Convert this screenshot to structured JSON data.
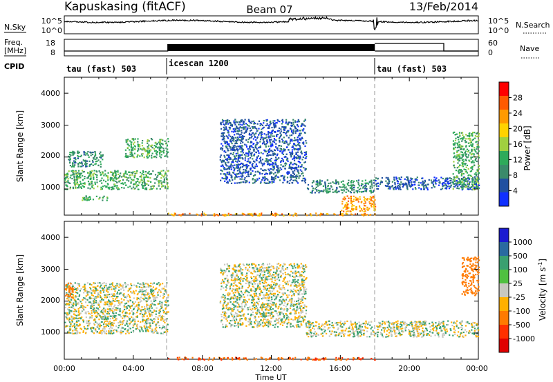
{
  "header": {
    "station": "Kapuskasing (fitACF)",
    "beam": "Beam 07",
    "date": "13/Feb/2014"
  },
  "noise_panel": {
    "left_label": "N.Sky",
    "right_label": "N.Search",
    "ticks": [
      "10^5",
      "10^0"
    ]
  },
  "freq_panel": {
    "left_label_1": "Freq.",
    "left_label_2": "[MHz]",
    "right_label": "Nave",
    "left_ticks": [
      "18",
      "8"
    ],
    "right_ticks": [
      "60",
      "0"
    ]
  },
  "cpid": {
    "label": "CPID",
    "segments": [
      {
        "start_h": 0,
        "end_h": 6,
        "label": "tau (fast) 503"
      },
      {
        "start_h": 6,
        "end_h": 18,
        "label": "icescan 1200"
      },
      {
        "start_h": 18,
        "end_h": 24,
        "label": "tau (fast) 503"
      }
    ]
  },
  "axes": {
    "ylabel": "Slant Range [km]",
    "xlabel": "Time UT",
    "y_ticks": [
      "1000",
      "2000",
      "3000",
      "4000"
    ],
    "x_ticks": [
      "00:00",
      "04:00",
      "08:00",
      "12:00",
      "16:00",
      "20:00",
      "00:00"
    ]
  },
  "power_scale": {
    "label": "Power [dB]",
    "ticks": [
      "4",
      "8",
      "12",
      "16",
      "20",
      "24",
      "28"
    ],
    "colors": [
      "#1030ff",
      "#2050a0",
      "#3a8a6a",
      "#2eaa5a",
      "#a0d040",
      "#ffd200",
      "#ff9a00",
      "#ff5a00",
      "#ff0000"
    ]
  },
  "velocity_scale": {
    "label": "Velocity [m s",
    "label_sup": "-1",
    "label_close": "]",
    "ticks": [
      "1000",
      "500",
      "100",
      "25",
      "-25",
      "-100",
      "-500",
      "-1000"
    ],
    "colors": [
      "#1a1ad0",
      "#2a6aa0",
      "#3aa070",
      "#50c040",
      "#c8c8c0",
      "#ffb000",
      "#ff7a00",
      "#ff3000",
      "#e00000"
    ]
  },
  "chart_data": {
    "type": "heatmap",
    "title": "Kapuskasing (fitACF) Beam 07",
    "xlabel": "Time UT",
    "ylabel": "Slant Range [km]",
    "xlim": [
      0,
      24
    ],
    "ylim": [
      180,
      4500
    ],
    "power_regions": [
      {
        "t0": 0,
        "t1": 6,
        "r0": 1000,
        "r1": 1600,
        "level": 12
      },
      {
        "t0": 0.2,
        "t1": 2.2,
        "r0": 1700,
        "r1": 2200,
        "level": 8
      },
      {
        "t0": 3.5,
        "t1": 6,
        "r0": 2000,
        "r1": 2600,
        "level": 12
      },
      {
        "t0": 1,
        "t1": 2.5,
        "r0": 650,
        "r1": 800,
        "level": 12
      },
      {
        "t0": 9,
        "t1": 14,
        "r0": 1200,
        "r1": 3200,
        "level": 4
      },
      {
        "t0": 14,
        "t1": 18,
        "r0": 900,
        "r1": 1300,
        "level": 8
      },
      {
        "t0": 16,
        "t1": 18,
        "r0": 300,
        "r1": 800,
        "level": 24
      },
      {
        "t0": 18,
        "t1": 24,
        "r0": 1000,
        "r1": 1400,
        "level": 4
      },
      {
        "t0": 22.5,
        "t1": 24,
        "r0": 1000,
        "r1": 2800,
        "level": 12
      },
      {
        "t0": 6,
        "t1": 18,
        "r0": 180,
        "r1": 260,
        "level": 24
      }
    ],
    "velocity_regions": [
      {
        "t0": 0,
        "t1": 6,
        "r0": 1000,
        "r1": 2600,
        "vel": 0
      },
      {
        "t0": 0,
        "t1": 0.5,
        "r0": 2100,
        "r1": 2600,
        "vel": -300
      },
      {
        "t0": 9,
        "t1": 14,
        "r0": 1200,
        "r1": 3200,
        "vel": 0
      },
      {
        "t0": 14,
        "t1": 24,
        "r0": 900,
        "r1": 1400,
        "vel": 0
      },
      {
        "t0": 23,
        "t1": 24,
        "r0": 2200,
        "r1": 3400,
        "vel": -300
      },
      {
        "t0": 6,
        "t1": 18,
        "r0": 180,
        "r1": 260,
        "vel": -500
      }
    ]
  }
}
